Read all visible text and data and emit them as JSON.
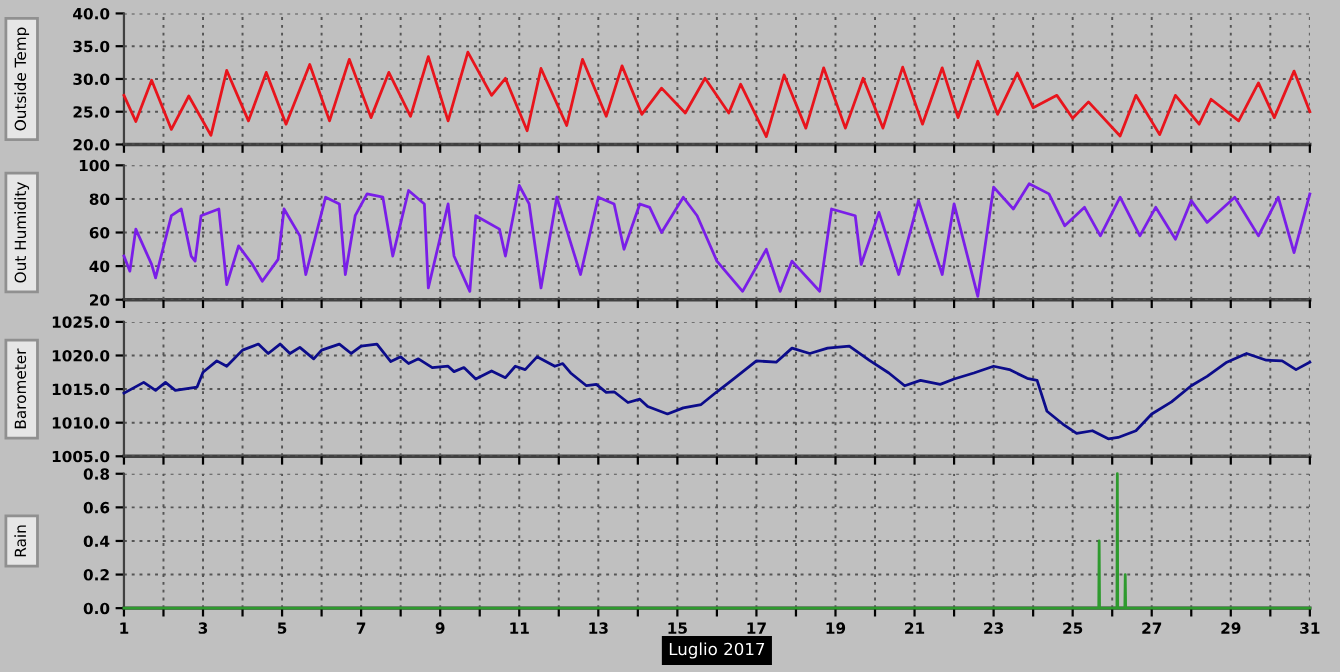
{
  "chart_data": [
    {
      "type": "line",
      "ylabel": "Outside Temp",
      "xlim": [
        1,
        31
      ],
      "ylim": [
        20,
        40
      ],
      "yticks": [
        {
          "value": 20,
          "label": "20.0"
        },
        {
          "value": 25,
          "label": "25.0"
        },
        {
          "value": 30,
          "label": "30.0"
        },
        {
          "value": 35,
          "label": "35.0"
        },
        {
          "value": 40,
          "label": "40.0"
        }
      ],
      "xticks": [
        1,
        {
          "value": 2,
          "label": null
        },
        3,
        {
          "value": 4,
          "label": null
        },
        5,
        {
          "value": 6,
          "label": null
        },
        7,
        {
          "value": 8,
          "label": null
        },
        9,
        {
          "value": 10,
          "label": null
        },
        11,
        {
          "value": 12,
          "label": null
        },
        13,
        {
          "value": 14,
          "label": null
        },
        15,
        {
          "value": 16,
          "label": null
        },
        17,
        {
          "value": 18,
          "label": null
        },
        19,
        {
          "value": 20,
          "label": null
        },
        21,
        {
          "value": 22,
          "label": null
        },
        23,
        {
          "value": 24,
          "label": null
        },
        25,
        {
          "value": 26,
          "label": null
        },
        27,
        {
          "value": 28,
          "label": null
        },
        29,
        {
          "value": 30,
          "label": null
        },
        31
      ],
      "tick_labels": "y",
      "grid": true,
      "legend": false,
      "series": [
        {
          "color": "#e8141c",
          "x": [
            1.0,
            1.3,
            1.7,
            2.2,
            2.64,
            3.2,
            3.6,
            4.15,
            4.6,
            5.1,
            5.7,
            6.2,
            6.7,
            7.25,
            7.7,
            8.25,
            8.7,
            9.2,
            9.7,
            10.3,
            10.65,
            11.2,
            11.55,
            12.2,
            12.6,
            13.2,
            13.6,
            14.1,
            14.6,
            15.2,
            15.7,
            16.3,
            16.6,
            17.25,
            17.7,
            18.25,
            18.7,
            19.25,
            19.7,
            20.2,
            20.7,
            21.2,
            21.7,
            22.1,
            22.6,
            23.1,
            23.6,
            24.0,
            24.6,
            25.0,
            25.4,
            26.2,
            26.6,
            27.2,
            27.6,
            28.2,
            28.5,
            29.2,
            29.7,
            30.1,
            30.6,
            31.0
          ],
          "values": [
            27.5,
            23.5,
            29.8,
            22.3,
            27.4,
            21.4,
            31.3,
            23.6,
            31.0,
            23.1,
            32.2,
            23.6,
            33.0,
            24.1,
            31.0,
            24.3,
            33.4,
            23.6,
            34.1,
            27.5,
            30.1,
            22.1,
            31.6,
            22.9,
            33.0,
            24.3,
            32.0,
            24.6,
            28.6,
            24.8,
            30.1,
            24.8,
            29.2,
            21.2,
            30.6,
            22.5,
            31.7,
            22.5,
            30.1,
            22.5,
            31.8,
            23.1,
            31.7,
            24.1,
            32.7,
            24.6,
            30.9,
            25.6,
            27.5,
            24.0,
            26.5,
            21.3,
            27.5,
            21.5,
            27.5,
            23.1,
            26.9,
            23.6,
            29.4,
            24.1,
            31.2,
            25.0
          ]
        }
      ]
    },
    {
      "type": "line",
      "ylabel": "Out Humidity",
      "xlim": [
        1,
        31
      ],
      "ylim": [
        20,
        100
      ],
      "yticks": [
        20,
        40,
        60,
        80,
        100
      ],
      "xticks": [
        1,
        {
          "value": 2,
          "label": null
        },
        3,
        {
          "value": 4,
          "label": null
        },
        5,
        {
          "value": 6,
          "label": null
        },
        7,
        {
          "value": 8,
          "label": null
        },
        9,
        {
          "value": 10,
          "label": null
        },
        11,
        {
          "value": 12,
          "label": null
        },
        13,
        {
          "value": 14,
          "label": null
        },
        15,
        {
          "value": 16,
          "label": null
        },
        17,
        {
          "value": 18,
          "label": null
        },
        19,
        {
          "value": 20,
          "label": null
        },
        21,
        {
          "value": 22,
          "label": null
        },
        23,
        {
          "value": 24,
          "label": null
        },
        25,
        {
          "value": 26,
          "label": null
        },
        27,
        {
          "value": 28,
          "label": null
        },
        29,
        {
          "value": 30,
          "label": null
        },
        31
      ],
      "tick_labels": "y",
      "grid": true,
      "legend": false,
      "series": [
        {
          "color": "#7a1ee8",
          "x": [
            1.0,
            1.15,
            1.3,
            1.7,
            1.8,
            2.2,
            2.45,
            2.7,
            2.8,
            2.95,
            3.4,
            3.6,
            3.9,
            4.25,
            4.5,
            4.9,
            5.05,
            5.45,
            5.6,
            6.1,
            6.45,
            6.6,
            6.85,
            7.15,
            7.55,
            7.8,
            8.2,
            8.6,
            8.7,
            9.2,
            9.35,
            9.75,
            9.9,
            10.5,
            10.65,
            11.0,
            11.25,
            11.55,
            11.95,
            12.3,
            12.55,
            13.0,
            13.4,
            13.65,
            14.05,
            14.3,
            14.6,
            15.15,
            15.5,
            16.0,
            16.65,
            17.25,
            17.6,
            17.9,
            18.6,
            18.9,
            19.5,
            19.65,
            20.1,
            20.6,
            21.1,
            21.7,
            22.0,
            22.6,
            23.0,
            23.5,
            23.9,
            24.4,
            24.8,
            25.3,
            25.7,
            26.2,
            26.7,
            27.1,
            27.6,
            28.0,
            28.4,
            29.1,
            29.7,
            30.2,
            30.6,
            31.0
          ],
          "values": [
            46,
            37,
            62,
            41,
            33,
            70,
            74,
            46,
            43,
            70,
            74,
            29,
            52,
            41,
            31,
            44,
            74,
            58,
            35,
            81,
            77,
            35,
            70,
            83,
            81,
            46,
            85,
            77,
            27,
            77,
            46,
            25,
            70,
            62,
            46,
            88,
            77,
            27,
            81,
            54,
            35,
            81,
            77,
            50,
            77,
            75,
            60,
            81,
            70,
            43,
            25,
            50,
            25,
            43,
            25,
            74,
            70,
            41,
            72,
            35,
            79,
            35,
            77,
            22,
            87,
            74,
            89,
            83,
            64,
            75,
            58,
            81,
            58,
            75,
            56,
            79,
            66,
            81,
            58,
            81,
            48,
            83
          ]
        }
      ]
    },
    {
      "type": "line",
      "ylabel": "Barometer",
      "xlim": [
        1,
        31
      ],
      "ylim": [
        1005,
        1025
      ],
      "yticks": [
        {
          "value": 1005,
          "label": "1005.0"
        },
        {
          "value": 1010,
          "label": "1010.0"
        },
        {
          "value": 1015,
          "label": "1015.0"
        },
        {
          "value": 1020,
          "label": "1020.0"
        },
        {
          "value": 1025,
          "label": "1025.0"
        }
      ],
      "xticks": [
        1,
        {
          "value": 2,
          "label": null
        },
        3,
        {
          "value": 4,
          "label": null
        },
        5,
        {
          "value": 6,
          "label": null
        },
        7,
        {
          "value": 8,
          "label": null
        },
        9,
        {
          "value": 10,
          "label": null
        },
        11,
        {
          "value": 12,
          "label": null
        },
        13,
        {
          "value": 14,
          "label": null
        },
        15,
        {
          "value": 16,
          "label": null
        },
        17,
        {
          "value": 18,
          "label": null
        },
        19,
        {
          "value": 20,
          "label": null
        },
        21,
        {
          "value": 22,
          "label": null
        },
        23,
        {
          "value": 24,
          "label": null
        },
        25,
        {
          "value": 26,
          "label": null
        },
        27,
        {
          "value": 28,
          "label": null
        },
        29,
        {
          "value": 30,
          "label": null
        },
        31
      ],
      "tick_labels": "y",
      "grid": true,
      "legend": false,
      "series": [
        {
          "color": "#0c0c8a",
          "x": [
            1.0,
            1.5,
            1.8,
            2.05,
            2.3,
            2.85,
            3.0,
            3.35,
            3.6,
            4.0,
            4.4,
            4.65,
            4.95,
            5.2,
            5.45,
            5.8,
            6.0,
            6.45,
            6.75,
            7.0,
            7.4,
            7.75,
            8.0,
            8.2,
            8.45,
            8.8,
            9.2,
            9.35,
            9.6,
            9.9,
            10.3,
            10.65,
            10.9,
            11.15,
            11.45,
            11.9,
            12.1,
            12.3,
            12.7,
            12.95,
            13.2,
            13.4,
            13.75,
            14.05,
            14.25,
            14.75,
            15.15,
            15.6,
            16.0,
            16.4,
            17.0,
            17.5,
            17.9,
            18.35,
            18.8,
            19.35,
            19.85,
            20.35,
            20.75,
            21.15,
            21.65,
            22.0,
            22.5,
            23.0,
            23.4,
            23.85,
            24.1,
            24.35,
            24.75,
            25.1,
            25.5,
            25.9,
            26.15,
            26.6,
            27.0,
            27.5,
            28.0,
            28.4,
            28.9,
            29.4,
            29.9,
            30.3,
            30.65,
            31.0
          ],
          "values": [
            1014.4,
            1016,
            1014.8,
            1016,
            1014.8,
            1015.3,
            1017.5,
            1019.2,
            1018.4,
            1020.8,
            1021.7,
            1020.3,
            1021.7,
            1020.3,
            1021.2,
            1019.5,
            1020.8,
            1021.7,
            1020.3,
            1021.4,
            1021.7,
            1019.1,
            1019.8,
            1018.8,
            1019.5,
            1018.2,
            1018.4,
            1017.6,
            1018.2,
            1016.5,
            1017.7,
            1016.7,
            1018.4,
            1017.9,
            1019.8,
            1018.4,
            1018.8,
            1017.4,
            1015.5,
            1015.7,
            1014.5,
            1014.6,
            1013,
            1013.5,
            1012.4,
            1011.3,
            1012.2,
            1012.7,
            1014.6,
            1016.4,
            1019.2,
            1019,
            1021.1,
            1020.3,
            1021.1,
            1021.4,
            1019.3,
            1017.4,
            1015.5,
            1016.3,
            1015.7,
            1016.5,
            1017.4,
            1018.4,
            1017.9,
            1016.6,
            1016.3,
            1011.7,
            1009.8,
            1008.4,
            1008.8,
            1007.6,
            1007.8,
            1008.8,
            1011.3,
            1013.1,
            1015.5,
            1016.9,
            1019,
            1020.3,
            1019.3,
            1019.2,
            1017.9,
            1019
          ]
        }
      ]
    },
    {
      "type": "line",
      "ylabel": "Rain",
      "xlabel": "Luglio 2017",
      "xlim": [
        1,
        31
      ],
      "ylim": [
        0,
        0.8
      ],
      "yticks": [
        {
          "value": 0,
          "label": "0.0"
        },
        {
          "value": 0.2,
          "label": "0.2"
        },
        {
          "value": 0.4,
          "label": "0.4"
        },
        {
          "value": 0.6,
          "label": "0.6"
        },
        {
          "value": 0.8,
          "label": "0.8"
        }
      ],
      "xticks": [
        1,
        {
          "value": 2,
          "label": null
        },
        3,
        {
          "value": 4,
          "label": null
        },
        5,
        {
          "value": 6,
          "label": null
        },
        7,
        {
          "value": 8,
          "label": null
        },
        9,
        {
          "value": 10,
          "label": null
        },
        11,
        {
          "value": 12,
          "label": null
        },
        13,
        {
          "value": 14,
          "label": null
        },
        15,
        {
          "value": 16,
          "label": null
        },
        17,
        {
          "value": 18,
          "label": null
        },
        19,
        {
          "value": 20,
          "label": null
        },
        21,
        {
          "value": 22,
          "label": null
        },
        23,
        {
          "value": 24,
          "label": null
        },
        25,
        {
          "value": 26,
          "label": null
        },
        27,
        {
          "value": 28,
          "label": null
        },
        29,
        {
          "value": 30,
          "label": null
        },
        31
      ],
      "grid": true,
      "legend": false,
      "series": [
        {
          "color": "#2e9a2e",
          "x": [
            1,
            25.66,
            25.67,
            25.68,
            26.12,
            26.13,
            26.14,
            26.32,
            26.33,
            26.34,
            31
          ],
          "values": [
            0,
            0,
            0.4,
            0,
            0,
            0.8,
            0,
            0,
            0.2,
            0,
            0
          ]
        }
      ]
    }
  ]
}
